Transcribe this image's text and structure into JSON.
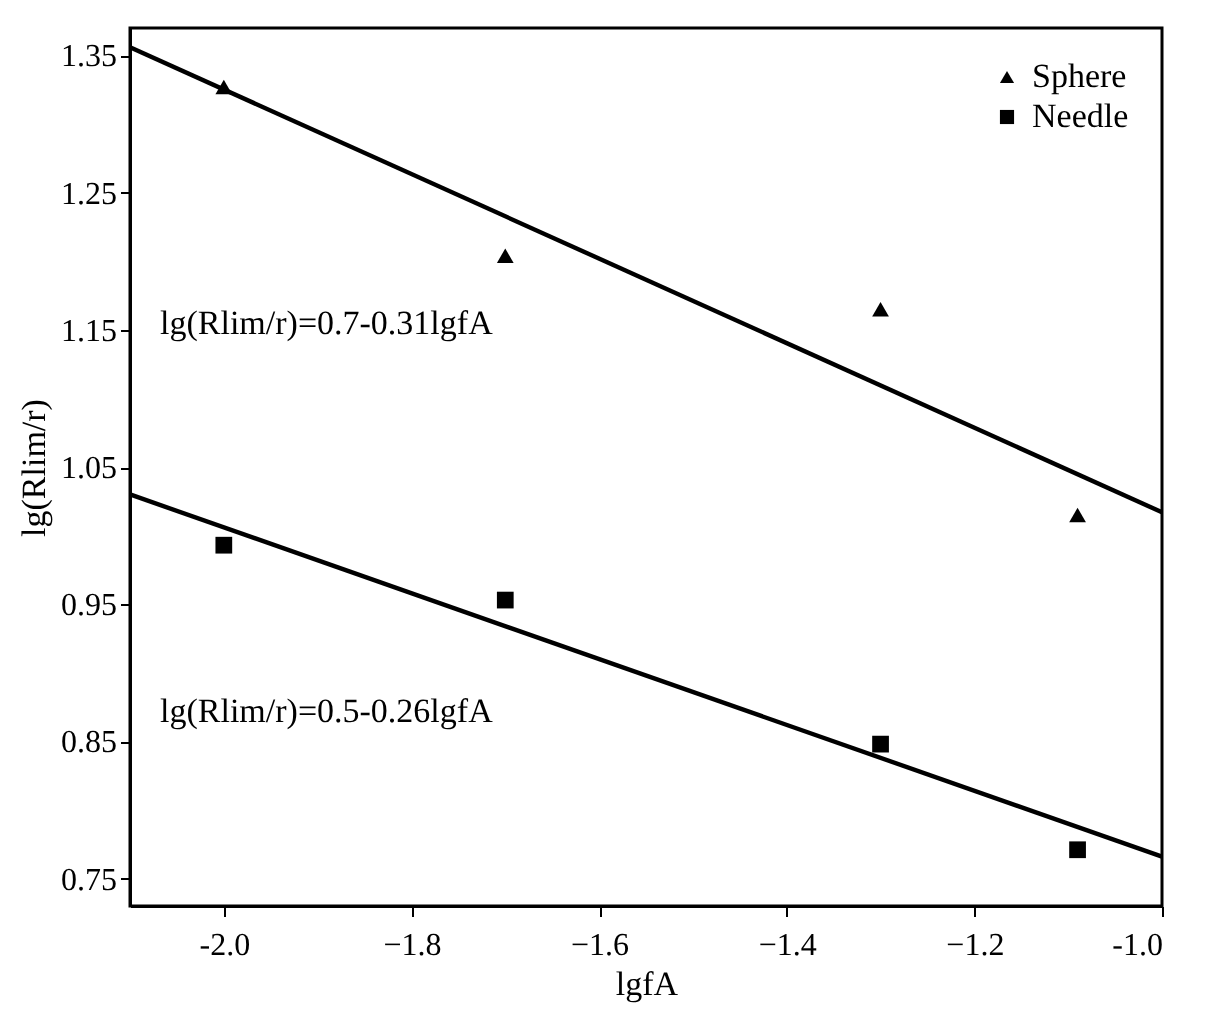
{
  "chart_data": {
    "type": "scatter",
    "xlabel": "lgfA",
    "ylabel": "lg(Rlim/r)",
    "xlim": [
      -2.1,
      -1.0
    ],
    "xticks": [
      {
        "value": -2.0,
        "label": "-2.0"
      },
      -1.8,
      -1.6,
      -1.4,
      -1.2,
      {
        "value": -1.0,
        "label": "-1.0"
      }
    ],
    "ylim": [
      0.73,
      1.37
    ],
    "yticks": [
      0.75,
      0.85,
      0.95,
      1.05,
      1.15,
      1.25,
      1.35
    ],
    "legend": "top right",
    "grid": false,
    "series": [
      {
        "name": "Sphere",
        "marker": "triangle",
        "color": "#000000",
        "x": [
          -2.0,
          -1.7,
          -1.3,
          -1.09
        ],
        "values": [
          1.327,
          1.204,
          1.165,
          1.015
        ]
      },
      {
        "name": "Needle",
        "marker": "square",
        "color": "#000000",
        "x": [
          -2.0,
          -1.7,
          -1.3,
          -1.09
        ],
        "values": [
          0.993,
          0.953,
          0.848,
          0.771
        ]
      },
      {
        "type": "line",
        "color": "#000000",
        "line_style": "solid",
        "x": [
          -2.1,
          -1.0
        ],
        "values": [
          1.356,
          1.017
        ]
      },
      {
        "type": "line",
        "color": "#000000",
        "line_style": "solid",
        "x": [
          -2.1,
          -1.0
        ],
        "values": [
          1.03,
          0.766
        ]
      }
    ],
    "annotations": [
      "lg(Rlim/r)=0.7-0.31lgfA",
      "lg(Rlim/r)=0.5-0.26lgfA"
    ]
  }
}
